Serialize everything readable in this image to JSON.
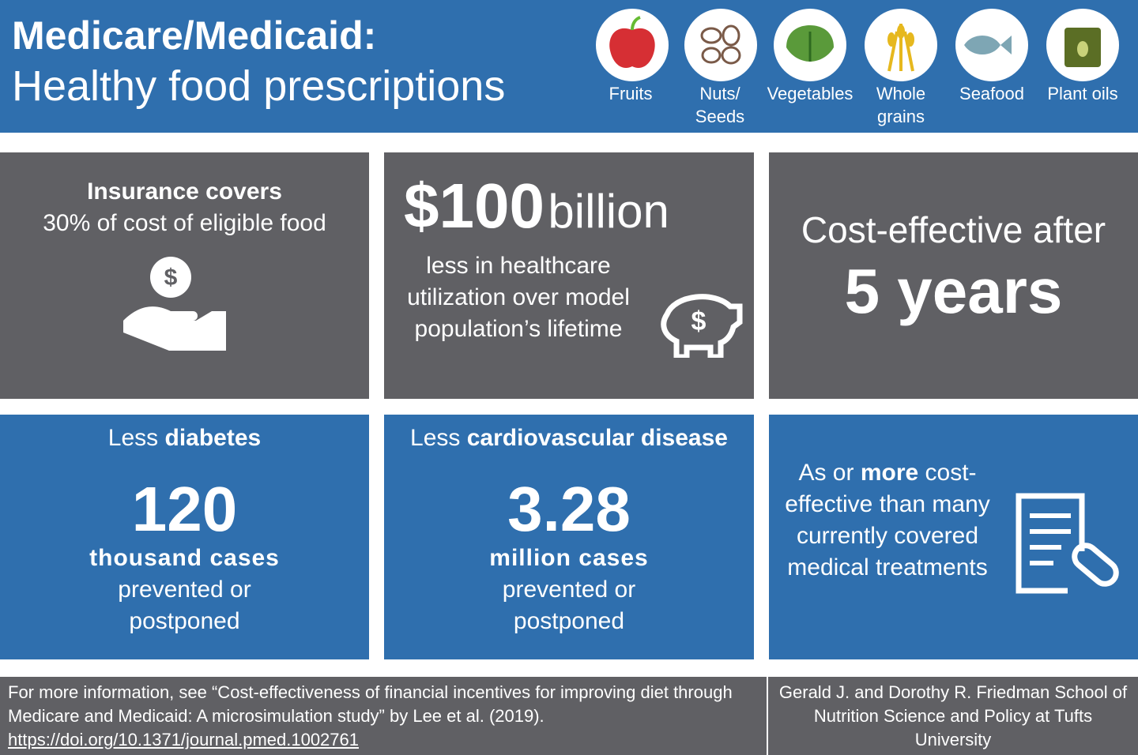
{
  "header": {
    "title_line1": "Medicare/Medicaid:",
    "title_line2": "Healthy food prescriptions",
    "foods": [
      "Fruits",
      "Nuts/ Seeds",
      "Vegetables",
      "Whole grains",
      "Seafood",
      "Plant oils"
    ]
  },
  "cards": [
    {
      "bold": "Insurance covers",
      "text": "30% of cost of eligible food"
    },
    {
      "big": "$100",
      "unit": "billion",
      "text": "less in healthcare utilization over model population’s lifetime"
    },
    {
      "text": "Cost-effective after",
      "big": "5 years"
    },
    {
      "lead": "Less",
      "bold": "diabetes",
      "big": "120",
      "unit": "thousand cases",
      "text": "prevented or postponed"
    },
    {
      "lead": "Less",
      "bold": "cardiovascular disease",
      "big": "3.28",
      "unit": "million cases",
      "text": "prevented or postponed"
    },
    {
      "lead": "As or",
      "bold": "more",
      "text": "cost-effective than many currently covered medical treatments"
    }
  ],
  "footer": {
    "citation": "For more information, see “Cost-effectiveness of financial incentives for improving diet through Medicare and Medicaid: A microsimulation study” by Lee et al. (2019).",
    "link": "https://doi.org/10.1371/journal.pmed.1002761",
    "institution": "Gerald J. and Dorothy R. Friedman School of Nutrition Science and Policy at Tufts University"
  }
}
